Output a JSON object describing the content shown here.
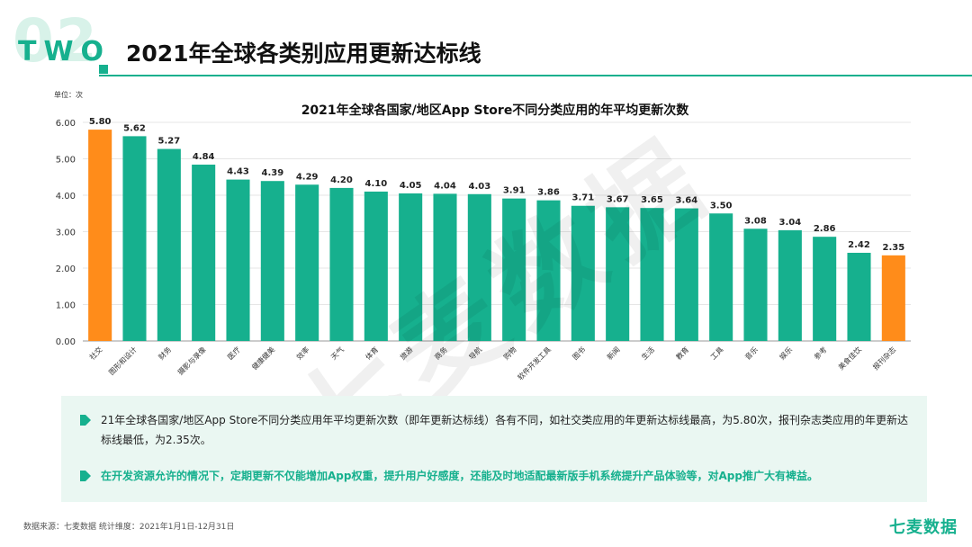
{
  "header": {
    "section_number": "02",
    "section_word": "TWO",
    "title": "2021年全球各类别应用更新达标线"
  },
  "unit_label": "单位：次",
  "watermark": "七麦数据",
  "chart_data": {
    "type": "bar",
    "title": "2021年全球各国家/地区App Store不同分类应用的年平均更新次数",
    "ylabel": "单位：次",
    "ylim": [
      0,
      6
    ],
    "yticks": [
      "0.00",
      "1.00",
      "2.00",
      "3.00",
      "4.00",
      "5.00",
      "6.00"
    ],
    "grid": true,
    "categories": [
      "社交",
      "图形和设计",
      "财务",
      "摄影与录像",
      "医疗",
      "健康健美",
      "效率",
      "天气",
      "体育",
      "旅游",
      "商务",
      "导航",
      "购物",
      "软件开发工具",
      "图书",
      "新闻",
      "生活",
      "教育",
      "工具",
      "音乐",
      "娱乐",
      "参考",
      "美食佳饮",
      "报刊杂志"
    ],
    "values": [
      5.8,
      5.62,
      5.27,
      4.84,
      4.43,
      4.39,
      4.29,
      4.2,
      4.1,
      4.05,
      4.04,
      4.03,
      3.91,
      3.86,
      3.71,
      3.67,
      3.65,
      3.64,
      3.5,
      3.08,
      3.04,
      2.86,
      2.42,
      2.35
    ],
    "value_labels": [
      "5.80",
      "5.62",
      "5.27",
      "4.84",
      "4.43",
      "4.39",
      "4.29",
      "4.20",
      "4.10",
      "4.05",
      "4.04",
      "4.03",
      "3.91",
      "3.86",
      "3.71",
      "3.67",
      "3.65",
      "3.64",
      "3.50",
      "3.08",
      "3.04",
      "2.86",
      "2.42",
      "2.35"
    ],
    "highlight_indices": [
      0,
      23
    ],
    "colors": {
      "bar": "#16b08e",
      "highlight": "#ff8c1a"
    }
  },
  "notes": [
    "21年全球各国家/地区App Store不同分类应用年平均更新次数（即年更新达标线）各有不同，如社交类应用的年更新达标线最高，为5.80次，报刊杂志类应用的年更新达标线最低，为2.35次。",
    "在开发资源允许的情况下，定期更新不仅能增加App权重，提升用户好感度，还能及时地适配最新版手机系统提升产品体验等，对App推广大有裨益。"
  ],
  "footer": {
    "source": "数据来源：七麦数据  统计维度：2021年1月1日-12月31日",
    "brand": "七麦数据"
  },
  "colors": {
    "accent": "#16b08e",
    "orange": "#ff8c1a",
    "note_bg": "#eaf7f2"
  }
}
